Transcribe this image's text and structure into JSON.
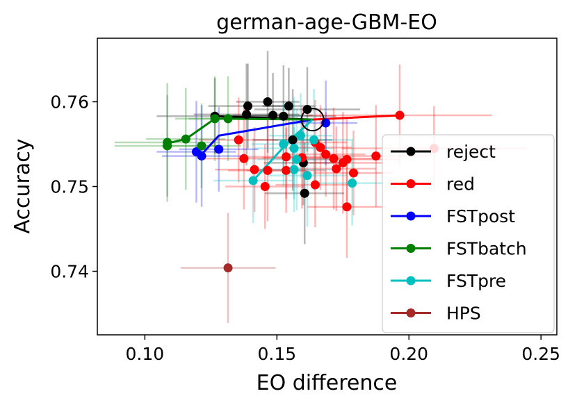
{
  "chart_data": {
    "type": "scatter",
    "title": "german-age-GBM-EO",
    "xlabel": "EO difference",
    "ylabel": "Accuracy",
    "xlim": [
      0.082,
      0.256
    ],
    "ylim": [
      0.7325,
      0.7675
    ],
    "xticks": [
      0.1,
      0.15,
      0.2,
      0.25
    ],
    "xtick_labels": [
      "0.10",
      "0.15",
      "0.20",
      "0.25"
    ],
    "yticks": [
      0.74,
      0.75,
      0.76
    ],
    "ytick_labels": [
      "0.74",
      "0.75",
      "0.76"
    ],
    "legend_position": "lower-right",
    "highlight": {
      "x": 0.1635,
      "y": 0.7579
    },
    "series": [
      {
        "name": "reject",
        "color": "#000000",
        "line": [
          [
            0.1635,
            0.7579
          ],
          [
            0.1265,
            0.7583
          ]
        ],
        "points": [
          {
            "x": 0.1265,
            "y": 0.7583,
            "xerr": 0.022,
            "yerr": 0.0045
          },
          {
            "x": 0.1385,
            "y": 0.7585,
            "xerr": 0.02,
            "yerr": 0.006
          },
          {
            "x": 0.139,
            "y": 0.7595,
            "xerr": 0.015,
            "yerr": 0.005
          },
          {
            "x": 0.1465,
            "y": 0.76,
            "xerr": 0.012,
            "yerr": 0.006
          },
          {
            "x": 0.1485,
            "y": 0.7584,
            "xerr": 0.015,
            "yerr": 0.005
          },
          {
            "x": 0.1525,
            "y": 0.7583,
            "xerr": 0.02,
            "yerr": 0.006
          },
          {
            "x": 0.1545,
            "y": 0.7595,
            "xerr": 0.01,
            "yerr": 0.0045
          },
          {
            "x": 0.1615,
            "y": 0.7591,
            "xerr": 0.02,
            "yerr": 0.005
          },
          {
            "x": 0.156,
            "y": 0.7555,
            "xerr": 0.015,
            "yerr": 0.006
          },
          {
            "x": 0.16,
            "y": 0.7528,
            "xerr": 0.015,
            "yerr": 0.005
          },
          {
            "x": 0.1605,
            "y": 0.7492,
            "xerr": 0.015,
            "yerr": 0.006
          }
        ]
      },
      {
        "name": "red",
        "color": "#ff0000",
        "line": [
          [
            0.1635,
            0.7579
          ],
          [
            0.1965,
            0.7584
          ]
        ],
        "points": [
          {
            "x": 0.1965,
            "y": 0.7584,
            "xerr": 0.035,
            "yerr": 0.006
          },
          {
            "x": 0.2095,
            "y": 0.7545,
            "xerr": 0.035,
            "yerr": 0.005
          },
          {
            "x": 0.1875,
            "y": 0.7536,
            "xerr": 0.02,
            "yerr": 0.006
          },
          {
            "x": 0.179,
            "y": 0.7516,
            "xerr": 0.015,
            "yerr": 0.005
          },
          {
            "x": 0.1765,
            "y": 0.7532,
            "xerr": 0.02,
            "yerr": 0.005
          },
          {
            "x": 0.175,
            "y": 0.7528,
            "xerr": 0.015,
            "yerr": 0.006
          },
          {
            "x": 0.1725,
            "y": 0.7521,
            "xerr": 0.015,
            "yerr": 0.005
          },
          {
            "x": 0.1715,
            "y": 0.7533,
            "xerr": 0.015,
            "yerr": 0.006
          },
          {
            "x": 0.1685,
            "y": 0.7538,
            "xerr": 0.015,
            "yerr": 0.005
          },
          {
            "x": 0.1665,
            "y": 0.7546,
            "xerr": 0.012,
            "yerr": 0.005
          },
          {
            "x": 0.1645,
            "y": 0.7552,
            "xerr": 0.012,
            "yerr": 0.005
          },
          {
            "x": 0.1765,
            "y": 0.7476,
            "xerr": 0.015,
            "yerr": 0.006
          },
          {
            "x": 0.1645,
            "y": 0.7502,
            "xerr": 0.015,
            "yerr": 0.005
          },
          {
            "x": 0.1595,
            "y": 0.7534,
            "xerr": 0.015,
            "yerr": 0.006
          },
          {
            "x": 0.1535,
            "y": 0.7535,
            "xerr": 0.015,
            "yerr": 0.005
          },
          {
            "x": 0.1535,
            "y": 0.7519,
            "xerr": 0.015,
            "yerr": 0.005
          },
          {
            "x": 0.1465,
            "y": 0.7519,
            "xerr": 0.015,
            "yerr": 0.006
          },
          {
            "x": 0.1455,
            "y": 0.75,
            "xerr": 0.015,
            "yerr": 0.005
          },
          {
            "x": 0.1415,
            "y": 0.752,
            "xerr": 0.015,
            "yerr": 0.005
          },
          {
            "x": 0.1375,
            "y": 0.7533,
            "xerr": 0.015,
            "yerr": 0.006
          },
          {
            "x": 0.1355,
            "y": 0.7555,
            "xerr": 0.015,
            "yerr": 0.005
          }
        ]
      },
      {
        "name": "FSTpost",
        "color": "#0000ff",
        "line": [
          [
            0.1635,
            0.7579
          ],
          [
            0.128,
            0.756
          ],
          [
            0.1215,
            0.7538
          ],
          [
            0.1195,
            0.754
          ]
        ],
        "points": [
          {
            "x": 0.128,
            "y": 0.7544,
            "xerr": 0.015,
            "yerr": 0.005
          },
          {
            "x": 0.1215,
            "y": 0.7536,
            "xerr": 0.015,
            "yerr": 0.006
          },
          {
            "x": 0.1195,
            "y": 0.7541,
            "xerr": 0.015,
            "yerr": 0.006
          },
          {
            "x": 0.1685,
            "y": 0.7575,
            "xerr": 0.012,
            "yerr": 0.005
          }
        ]
      },
      {
        "name": "FSTbatch",
        "color": "#008000",
        "line": [
          [
            0.1635,
            0.7579
          ],
          [
            0.1315,
            0.758
          ],
          [
            0.1265,
            0.758
          ],
          [
            0.1155,
            0.7556
          ],
          [
            0.1085,
            0.7551
          ]
        ],
        "points": [
          {
            "x": 0.1085,
            "y": 0.7552,
            "xerr": 0.02,
            "yerr": 0.007
          },
          {
            "x": 0.1085,
            "y": 0.7548,
            "xerr": 0.02,
            "yerr": 0.006
          },
          {
            "x": 0.1155,
            "y": 0.7556,
            "xerr": 0.015,
            "yerr": 0.006
          },
          {
            "x": 0.1215,
            "y": 0.7548,
            "xerr": 0.015,
            "yerr": 0.005
          },
          {
            "x": 0.1265,
            "y": 0.758,
            "xerr": 0.015,
            "yerr": 0.005
          },
          {
            "x": 0.1315,
            "y": 0.758,
            "xerr": 0.015,
            "yerr": 0.005
          }
        ]
      },
      {
        "name": "FSTpre",
        "color": "#00bfbf",
        "line": [
          [
            0.1635,
            0.7579
          ],
          [
            0.155,
            0.7555
          ],
          [
            0.141,
            0.7507
          ]
        ],
        "points": [
          {
            "x": 0.141,
            "y": 0.7507,
            "xerr": 0.015,
            "yerr": 0.005
          },
          {
            "x": 0.1525,
            "y": 0.755,
            "xerr": 0.012,
            "yerr": 0.005
          },
          {
            "x": 0.1565,
            "y": 0.7545,
            "xerr": 0.015,
            "yerr": 0.006
          },
          {
            "x": 0.1575,
            "y": 0.7532,
            "xerr": 0.015,
            "yerr": 0.006
          },
          {
            "x": 0.159,
            "y": 0.756,
            "xerr": 0.012,
            "yerr": 0.005
          },
          {
            "x": 0.1565,
            "y": 0.752,
            "xerr": 0.015,
            "yerr": 0.005
          },
          {
            "x": 0.1615,
            "y": 0.7513,
            "xerr": 0.015,
            "yerr": 0.006
          },
          {
            "x": 0.164,
            "y": 0.7555,
            "xerr": 0.015,
            "yerr": 0.006
          },
          {
            "x": 0.1785,
            "y": 0.7504,
            "xerr": 0.015,
            "yerr": 0.005
          }
        ]
      },
      {
        "name": "HPS",
        "color": "#a52a2a",
        "line": [],
        "points": [
          {
            "x": 0.1315,
            "y": 0.7404,
            "xerr": 0.018,
            "yerr": 0.0065
          }
        ]
      }
    ]
  }
}
